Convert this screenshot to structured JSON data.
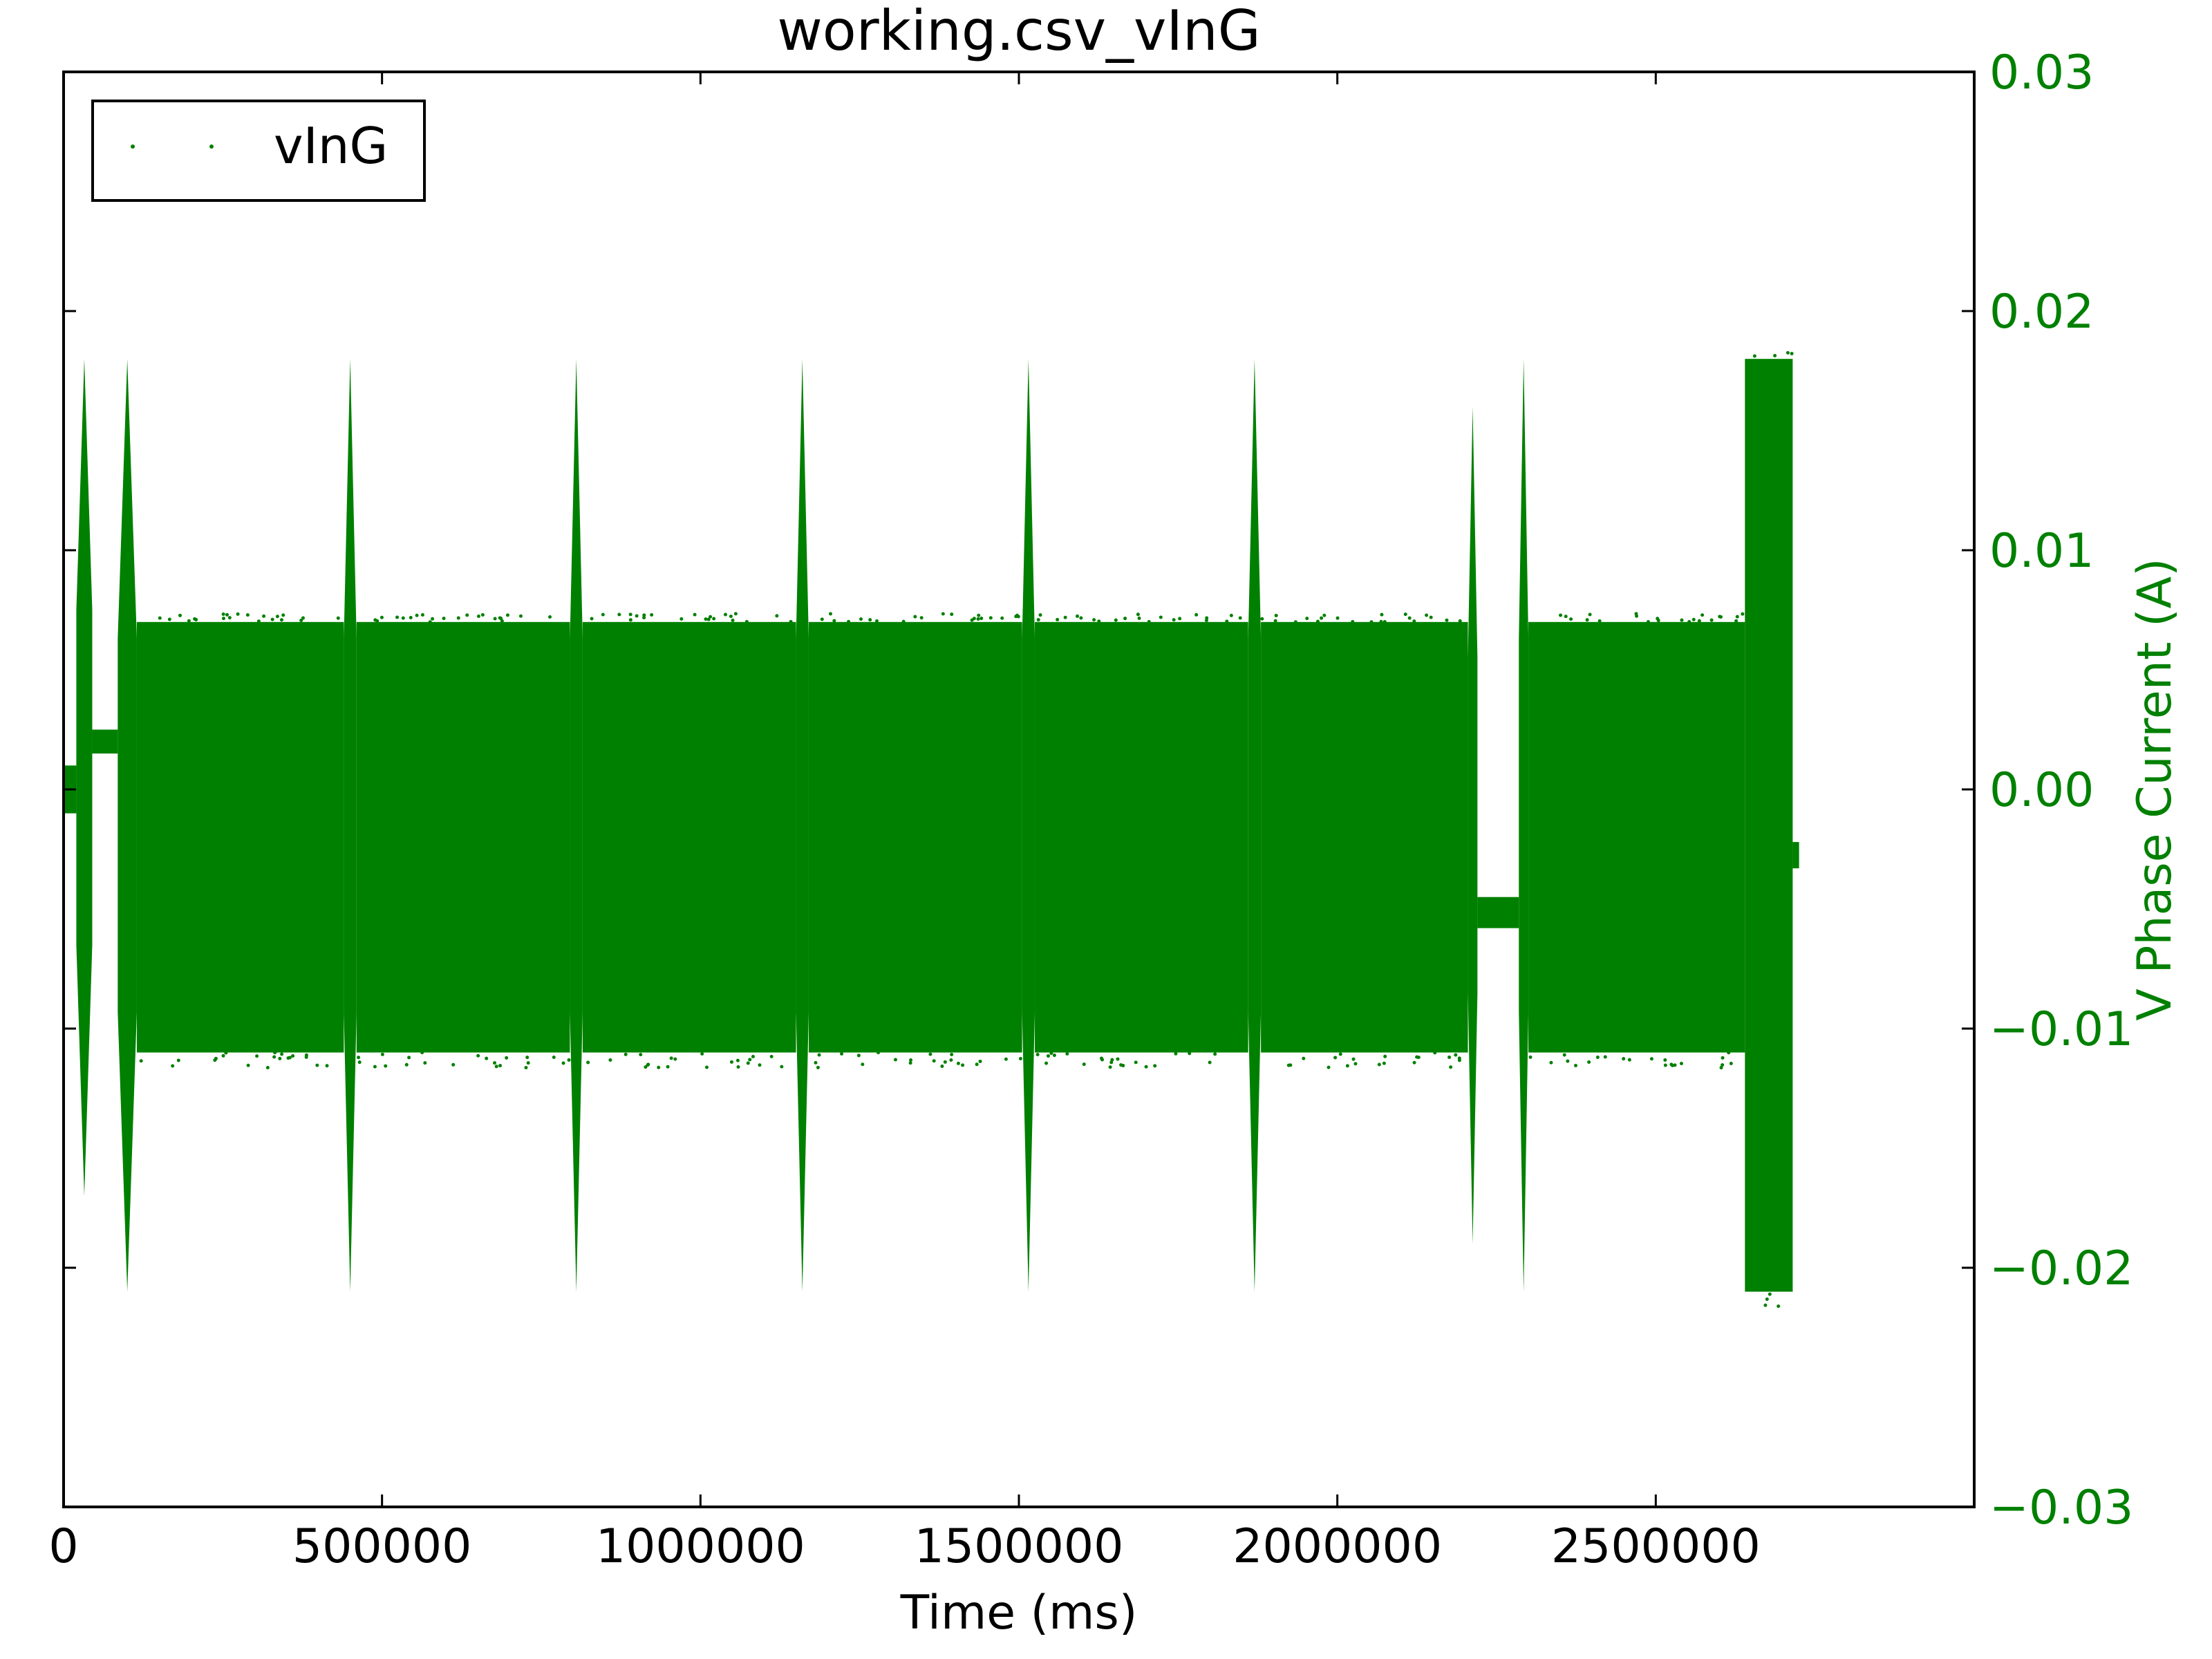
{
  "chart_data": {
    "type": "scatter",
    "title": "working.csv_vInG",
    "xlabel": "Time (ms)",
    "ylabel": "V Phase Current (A)",
    "xlim": [
      0,
      3000000
    ],
    "ylim": [
      -0.03,
      0.03
    ],
    "x_ticks": [
      0,
      500000,
      1000000,
      1500000,
      2000000,
      2500000
    ],
    "x_tick_labels": [
      "0",
      "500000",
      "1000000",
      "1500000",
      "2000000",
      "2500000"
    ],
    "y_ticks": [
      -0.03,
      -0.02,
      -0.01,
      0.0,
      0.01,
      0.02,
      0.03
    ],
    "y_tick_labels": [
      "−0.03",
      "−0.02",
      "−0.01",
      "0.00",
      "0.01",
      "0.02",
      "0.03"
    ],
    "y_axis_side": "right",
    "grid": false,
    "legend": {
      "position": "top-left",
      "entries": [
        "vInG"
      ]
    },
    "colors": {
      "series": "#008000",
      "axis_label": "#008000"
    },
    "series": [
      {
        "name": "vInG",
        "marker": "dot",
        "envelope": [
          {
            "x_start": 0,
            "x_end": 20000,
            "y_min": -0.001,
            "y_max": 0.001
          },
          {
            "x_start": 20000,
            "x_end": 45000,
            "y_min": -0.017,
            "y_max": 0.018
          },
          {
            "x_start": 45000,
            "x_end": 85000,
            "y_min": 0.0015,
            "y_max": 0.0025
          },
          {
            "x_start": 85000,
            "x_end": 115000,
            "y_min": -0.021,
            "y_max": 0.018
          },
          {
            "x_start": 115000,
            "x_end": 440000,
            "y_min": -0.011,
            "y_max": 0.007
          },
          {
            "x_start": 440000,
            "x_end": 460000,
            "y_min": -0.021,
            "y_max": 0.018
          },
          {
            "x_start": 460000,
            "x_end": 795000,
            "y_min": -0.011,
            "y_max": 0.007
          },
          {
            "x_start": 795000,
            "x_end": 815000,
            "y_min": -0.021,
            "y_max": 0.018
          },
          {
            "x_start": 815000,
            "x_end": 1150000,
            "y_min": -0.011,
            "y_max": 0.007
          },
          {
            "x_start": 1150000,
            "x_end": 1170000,
            "y_min": -0.021,
            "y_max": 0.018
          },
          {
            "x_start": 1170000,
            "x_end": 1505000,
            "y_min": -0.011,
            "y_max": 0.007
          },
          {
            "x_start": 1505000,
            "x_end": 1525000,
            "y_min": -0.021,
            "y_max": 0.018
          },
          {
            "x_start": 1525000,
            "x_end": 1860000,
            "y_min": -0.011,
            "y_max": 0.007
          },
          {
            "x_start": 1860000,
            "x_end": 1880000,
            "y_min": -0.021,
            "y_max": 0.018
          },
          {
            "x_start": 1880000,
            "x_end": 2205000,
            "y_min": -0.011,
            "y_max": 0.007
          },
          {
            "x_start": 2205000,
            "x_end": 2220000,
            "y_min": -0.019,
            "y_max": 0.016
          },
          {
            "x_start": 2220000,
            "x_end": 2285000,
            "y_min": -0.0058,
            "y_max": -0.0045
          },
          {
            "x_start": 2285000,
            "x_end": 2300000,
            "y_min": -0.021,
            "y_max": 0.018
          },
          {
            "x_start": 2300000,
            "x_end": 2640000,
            "y_min": -0.011,
            "y_max": 0.007
          },
          {
            "x_start": 2640000,
            "x_end": 2715000,
            "y_min": -0.021,
            "y_max": 0.018
          },
          {
            "x_start": 2715000,
            "x_end": 2725000,
            "y_min": -0.0033,
            "y_max": -0.0022
          }
        ]
      }
    ]
  }
}
